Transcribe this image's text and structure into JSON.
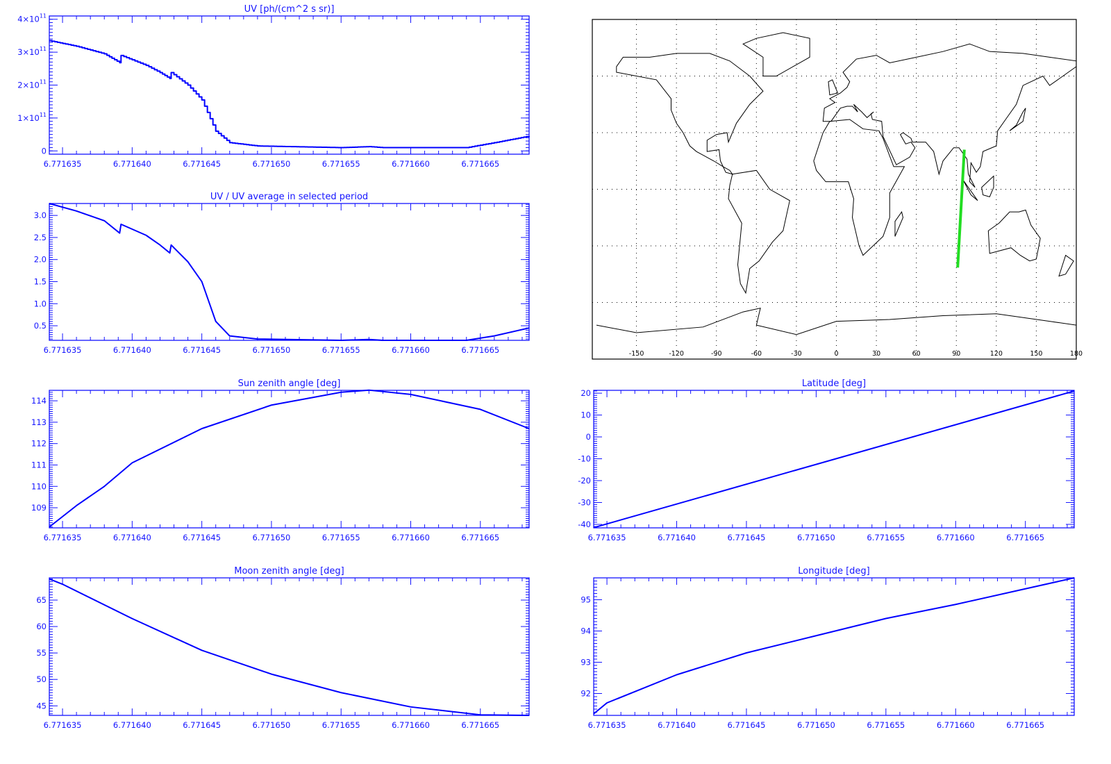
{
  "colors": {
    "axis": "#1414ff",
    "line": "#0000ff",
    "map": "#000000",
    "track": "#22dd22"
  },
  "chart_data": [
    {
      "id": "uv",
      "type": "line",
      "title": "UV [ph/(cm^2 s sr)]",
      "xlim": [
        6.77163405,
        6.7716685
      ],
      "ylim": [
        -10000000000.0,
        410000000000.0
      ],
      "xticks": [
        "6.771635",
        "6.771640",
        "6.771645",
        "6.771650",
        "6.771655",
        "6.771660",
        "6.771665"
      ],
      "yticks": [
        0,
        100000000000.0,
        200000000000.0,
        300000000000.0,
        400000000000.0
      ],
      "ytick_labels": [
        {
          "m": "0",
          "e": ""
        },
        {
          "m": "1×10",
          "e": "11"
        },
        {
          "m": "2×10",
          "e": "11"
        },
        {
          "m": "3×10",
          "e": "11"
        },
        {
          "m": "4×10",
          "e": "11"
        }
      ],
      "step": true,
      "x": [
        6.77163405,
        6.771636,
        6.771638,
        6.7716391,
        6.7716392,
        6.771641,
        6.771642,
        6.7716427,
        6.7716428,
        6.771644,
        6.771645,
        6.771646,
        6.771647,
        6.771649,
        6.771655,
        6.771657,
        6.771658,
        6.771664,
        6.771666,
        6.7716685
      ],
      "y": [
        335000000000.0,
        318000000000.0,
        295000000000.0,
        268000000000.0,
        290000000000.0,
        260000000000.0,
        238000000000.0,
        220000000000.0,
        238000000000.0,
        200000000000.0,
        155000000000.0,
        60000000000.0,
        25000000000.0,
        15000000000.0,
        10000000000.0,
        13000000000.0,
        10000000000.0,
        10000000000.0,
        25000000000.0,
        45000000000.0
      ]
    },
    {
      "id": "uv-ratio",
      "type": "line",
      "title": "UV / UV average in selected period",
      "xlim": [
        6.77163405,
        6.7716685
      ],
      "ylim": [
        0.17,
        3.27
      ],
      "xticks": [
        "6.771635",
        "6.771640",
        "6.771645",
        "6.771650",
        "6.771655",
        "6.771660",
        "6.771665"
      ],
      "yticks": [
        0.5,
        1.0,
        1.5,
        2.0,
        2.5,
        3.0
      ],
      "ytick_labels": [
        {
          "m": "0.5",
          "e": ""
        },
        {
          "m": "1.0",
          "e": ""
        },
        {
          "m": "1.5",
          "e": ""
        },
        {
          "m": "2.0",
          "e": ""
        },
        {
          "m": "2.5",
          "e": ""
        },
        {
          "m": "3.0",
          "e": ""
        }
      ],
      "x": [
        6.77163405,
        6.771636,
        6.771638,
        6.7716391,
        6.7716392,
        6.771641,
        6.771642,
        6.7716427,
        6.7716428,
        6.771644,
        6.771645,
        6.771646,
        6.771647,
        6.771649,
        6.771655,
        6.771657,
        6.771658,
        6.771664,
        6.771666,
        6.7716685
      ],
      "y": [
        3.27,
        3.1,
        2.88,
        2.6,
        2.8,
        2.55,
        2.33,
        2.15,
        2.33,
        1.95,
        1.5,
        0.6,
        0.27,
        0.2,
        0.17,
        0.19,
        0.17,
        0.17,
        0.27,
        0.45
      ]
    },
    {
      "id": "sun-zenith",
      "type": "line",
      "title": "Sun zenith angle [deg]",
      "xlim": [
        6.77163405,
        6.7716685
      ],
      "ylim": [
        108.06,
        114.49
      ],
      "xticks": [
        "6.771635",
        "6.771640",
        "6.771645",
        "6.771650",
        "6.771655",
        "6.771660",
        "6.771665"
      ],
      "yticks": [
        109,
        110,
        111,
        112,
        113,
        114
      ],
      "ytick_labels": [
        {
          "m": "109",
          "e": ""
        },
        {
          "m": "110",
          "e": ""
        },
        {
          "m": "111",
          "e": ""
        },
        {
          "m": "112",
          "e": ""
        },
        {
          "m": "113",
          "e": ""
        },
        {
          "m": "114",
          "e": ""
        }
      ],
      "x": [
        6.77163405,
        6.771636,
        6.771638,
        6.77164,
        6.771645,
        6.77165,
        6.771655,
        6.771657,
        6.77166,
        6.771665,
        6.7716685
      ],
      "y": [
        108.1,
        109.1,
        110.0,
        111.1,
        112.7,
        113.8,
        114.4,
        114.5,
        114.3,
        113.6,
        112.7
      ]
    },
    {
      "id": "moon-zenith",
      "type": "line",
      "title": "Moon zenith angle [deg]",
      "xlim": [
        6.77163405,
        6.7716685
      ],
      "ylim": [
        43.2,
        69.2
      ],
      "xticks": [
        "6.771635",
        "6.771640",
        "6.771645",
        "6.771650",
        "6.771655",
        "6.771660",
        "6.771665"
      ],
      "yticks": [
        45,
        50,
        55,
        60,
        65
      ],
      "ytick_labels": [
        {
          "m": "45",
          "e": ""
        },
        {
          "m": "50",
          "e": ""
        },
        {
          "m": "55",
          "e": ""
        },
        {
          "m": "60",
          "e": ""
        },
        {
          "m": "65",
          "e": ""
        }
      ],
      "x": [
        6.77163405,
        6.771635,
        6.77164,
        6.771645,
        6.77165,
        6.771655,
        6.77166,
        6.771665,
        6.7716685
      ],
      "y": [
        69.0,
        68.0,
        61.5,
        55.5,
        51.0,
        47.5,
        44.8,
        43.3,
        43.2
      ]
    },
    {
      "id": "latitude",
      "type": "line",
      "title": "Latitude [deg]",
      "xlim": [
        6.77163405,
        6.7716685
      ],
      "ylim": [
        -41.6,
        21.3
      ],
      "xticks": [
        "6.771635",
        "6.771640",
        "6.771645",
        "6.771650",
        "6.771655",
        "6.771660",
        "6.771665"
      ],
      "yticks": [
        -40,
        -30,
        -20,
        -10,
        0,
        10,
        20
      ],
      "ytick_labels": [
        {
          "m": "-40",
          "e": ""
        },
        {
          "m": "-30",
          "e": ""
        },
        {
          "m": "-20",
          "e": ""
        },
        {
          "m": "-10",
          "e": ""
        },
        {
          "m": "0",
          "e": ""
        },
        {
          "m": "10",
          "e": ""
        },
        {
          "m": "20",
          "e": ""
        }
      ],
      "x": [
        6.77163405,
        6.7716685
      ],
      "y": [
        -41.5,
        21.0
      ]
    },
    {
      "id": "longitude",
      "type": "line",
      "title": "Longitude [deg]",
      "xlim": [
        6.77163405,
        6.7716685
      ],
      "ylim": [
        91.3,
        95.7
      ],
      "xticks": [
        "6.771635",
        "6.771640",
        "6.771645",
        "6.771650",
        "6.771655",
        "6.771660",
        "6.771665"
      ],
      "yticks": [
        92,
        93,
        94,
        95
      ],
      "ytick_labels": [
        {
          "m": "92",
          "e": ""
        },
        {
          "m": "93",
          "e": ""
        },
        {
          "m": "94",
          "e": ""
        },
        {
          "m": "95",
          "e": ""
        }
      ],
      "x": [
        6.77163405,
        6.771635,
        6.77164,
        6.771645,
        6.77165,
        6.771655,
        6.77166,
        6.771665,
        6.7716685
      ],
      "y": [
        91.35,
        91.7,
        92.6,
        93.3,
        93.85,
        94.4,
        94.85,
        95.35,
        95.7
      ]
    }
  ],
  "map": {
    "type": "map",
    "projection": "equirectangular",
    "lon_range": [
      -180,
      180
    ],
    "lat_range": [
      -90,
      90
    ],
    "xtick_labels": [
      "-150",
      "-120",
      "-90",
      "-60",
      "-30",
      "0",
      "30",
      "60",
      "90",
      "120",
      "150",
      "180"
    ],
    "grid": "dotted every 30 deg",
    "track": {
      "lon": [
        96,
        91
      ],
      "lat": [
        21,
        -41.5
      ]
    }
  }
}
